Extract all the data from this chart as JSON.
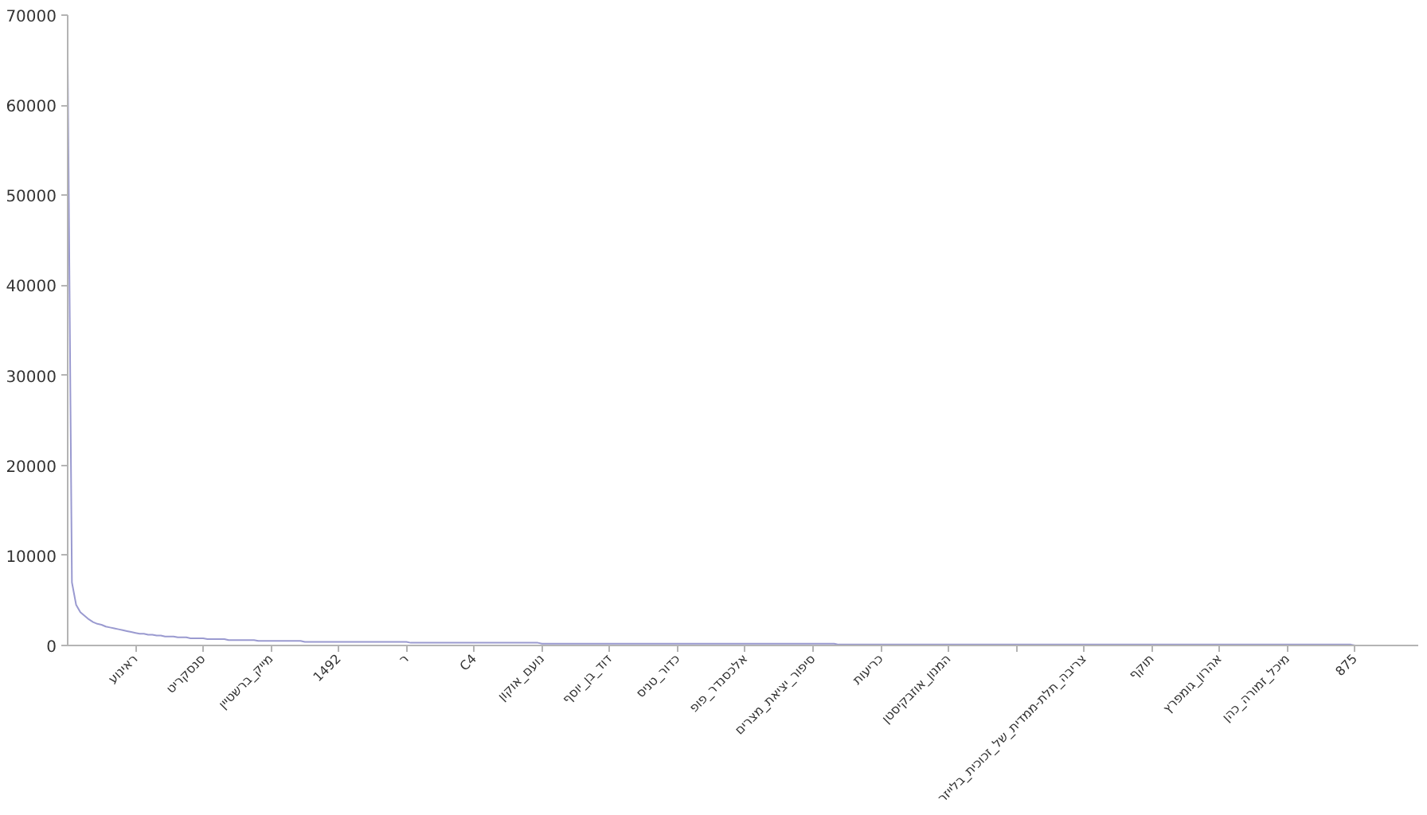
{
  "chart_data": {
    "type": "line",
    "color": "#9a9ad0",
    "categories": [
      null,
      null,
      null,
      null,
      null,
      null,
      null,
      null,
      null,
      null,
      null,
      null,
      null,
      null,
      null,
      null,
      "ראינוע",
      null,
      null,
      null,
      null,
      null,
      null,
      null,
      null,
      null,
      null,
      null,
      null,
      null,
      null,
      null,
      "סנסקריט",
      null,
      null,
      null,
      null,
      null,
      null,
      null,
      null,
      null,
      null,
      null,
      null,
      null,
      null,
      null,
      "מייק_ברשטיין",
      null,
      null,
      null,
      null,
      null,
      null,
      null,
      null,
      null,
      null,
      null,
      null,
      null,
      null,
      null,
      "1492",
      null,
      null,
      null,
      null,
      null,
      null,
      null,
      null,
      null,
      null,
      null,
      null,
      null,
      null,
      null,
      "ר",
      null,
      null,
      null,
      null,
      null,
      null,
      null,
      null,
      null,
      null,
      null,
      null,
      null,
      null,
      null,
      "C4",
      null,
      null,
      null,
      null,
      null,
      null,
      null,
      null,
      null,
      null,
      null,
      null,
      null,
      null,
      null,
      "נועם_אוקון",
      null,
      null,
      null,
      null,
      null,
      null,
      null,
      null,
      null,
      null,
      null,
      null,
      null,
      null,
      null,
      "דוד_בן_יוסף",
      null,
      null,
      null,
      null,
      null,
      null,
      null,
      null,
      null,
      null,
      null,
      null,
      null,
      null,
      null,
      "כדור_טניס",
      null,
      null,
      null,
      null,
      null,
      null,
      null,
      null,
      null,
      null,
      null,
      null,
      null,
      null,
      null,
      "אלכסנדר_פופ",
      null,
      null,
      null,
      null,
      null,
      null,
      null,
      null,
      null,
      null,
      null,
      null,
      null,
      null,
      null,
      "סיפור_יציאת_מצרים",
      null,
      null,
      null,
      null,
      null,
      null,
      null,
      null,
      null,
      null,
      null,
      null,
      null,
      null,
      null,
      "כריעות",
      null,
      null,
      null,
      null,
      null,
      null,
      null,
      null,
      null,
      null,
      null,
      null,
      null,
      null,
      null,
      "המנון_אוזבקיסטן",
      null,
      null,
      null,
      null,
      null,
      null,
      null,
      null,
      null,
      null,
      null,
      null,
      null,
      null,
      null,
      null,
      null,
      null,
      null,
      null,
      null,
      null,
      null,
      null,
      null,
      null,
      null,
      null,
      null,
      null,
      null,
      "צריבה_תלת-ממדית_של_זכוכית_בלייזר",
      null,
      null,
      null,
      null,
      null,
      null,
      null,
      null,
      null,
      null,
      null,
      null,
      null,
      null,
      null,
      "תוקף",
      null,
      null,
      null,
      null,
      null,
      null,
      null,
      null,
      null,
      null,
      null,
      null,
      null,
      null,
      null,
      "אהרון_גומפרץ",
      null,
      null,
      null,
      null,
      null,
      null,
      null,
      null,
      null,
      null,
      null,
      null,
      null,
      null,
      null,
      "מיכל_זמורה_כהן",
      null,
      null,
      null,
      null,
      null,
      null,
      null,
      null,
      null,
      null,
      null,
      null,
      null,
      null,
      null,
      "875",
      null,
      null,
      null,
      null,
      null,
      null,
      null,
      null,
      null,
      null,
      null,
      null,
      null,
      null,
      null
    ],
    "values": [
      65000,
      7000,
      4500,
      3700,
      3300,
      2900,
      2600,
      2400,
      2300,
      2100,
      2000,
      1900,
      1800,
      1700,
      1600,
      1500,
      1400,
      1300,
      1300,
      1200,
      1200,
      1100,
      1100,
      1000,
      1000,
      1000,
      900,
      900,
      900,
      800,
      800,
      800,
      800,
      700,
      700,
      700,
      700,
      700,
      600,
      600,
      600,
      600,
      600,
      600,
      600,
      500,
      500,
      500,
      500,
      500,
      500,
      500,
      500,
      500,
      500,
      500,
      400,
      400,
      400,
      400,
      400,
      400,
      400,
      400,
      400,
      400,
      400,
      400,
      400,
      400,
      400,
      400,
      400,
      400,
      400,
      400,
      400,
      400,
      400,
      400,
      400,
      300,
      300,
      300,
      300,
      300,
      300,
      300,
      300,
      300,
      300,
      300,
      300,
      300,
      300,
      300,
      300,
      300,
      300,
      300,
      300,
      300,
      300,
      300,
      300,
      300,
      300,
      300,
      300,
      300,
      300,
      300,
      200,
      200,
      200,
      200,
      200,
      200,
      200,
      200,
      200,
      200,
      200,
      200,
      200,
      200,
      200,
      200,
      200,
      200,
      200,
      200,
      200,
      200,
      200,
      200,
      200,
      200,
      200,
      200,
      200,
      200,
      200,
      200,
      200,
      200,
      200,
      200,
      200,
      200,
      200,
      200,
      200,
      200,
      200,
      200,
      200,
      200,
      200,
      200,
      200,
      200,
      200,
      200,
      200,
      200,
      200,
      200,
      200,
      200,
      200,
      200,
      200,
      200,
      200,
      200,
      200,
      200,
      200,
      200,
      200,
      200,
      100,
      100,
      100,
      100,
      100,
      100,
      100,
      100,
      100,
      100,
      100,
      100,
      100,
      100,
      100,
      100,
      100,
      100,
      100,
      100,
      100,
      100,
      100,
      100,
      100,
      100,
      100,
      100,
      100,
      100,
      100,
      100,
      100,
      100,
      100,
      100,
      100,
      100,
      100,
      100,
      100,
      100,
      100,
      100,
      100,
      100,
      100,
      100,
      100,
      100,
      100,
      100,
      100,
      100,
      100,
      100,
      100,
      100,
      100,
      100,
      100,
      100,
      100,
      100,
      100,
      100,
      100,
      100,
      100,
      100,
      100,
      100,
      100,
      100,
      100,
      100,
      100,
      100,
      100,
      100,
      100,
      100,
      100,
      100,
      100,
      100,
      100,
      100,
      100,
      100,
      100,
      100,
      100,
      100,
      100,
      100,
      100,
      100,
      100,
      100,
      100,
      100,
      100,
      100,
      100,
      100,
      100,
      100,
      100,
      100,
      100,
      100,
      100,
      100,
      100,
      100,
      100,
      100,
      100,
      100,
      100,
      100,
      0,
      0,
      0,
      0,
      0,
      0,
      0,
      0,
      0,
      0,
      0,
      0,
      0,
      0,
      0,
      0
    ],
    "ylim": [
      0,
      70000
    ],
    "yticks": [
      0,
      10000,
      20000,
      30000,
      40000,
      50000,
      60000,
      70000
    ],
    "grid": false
  }
}
